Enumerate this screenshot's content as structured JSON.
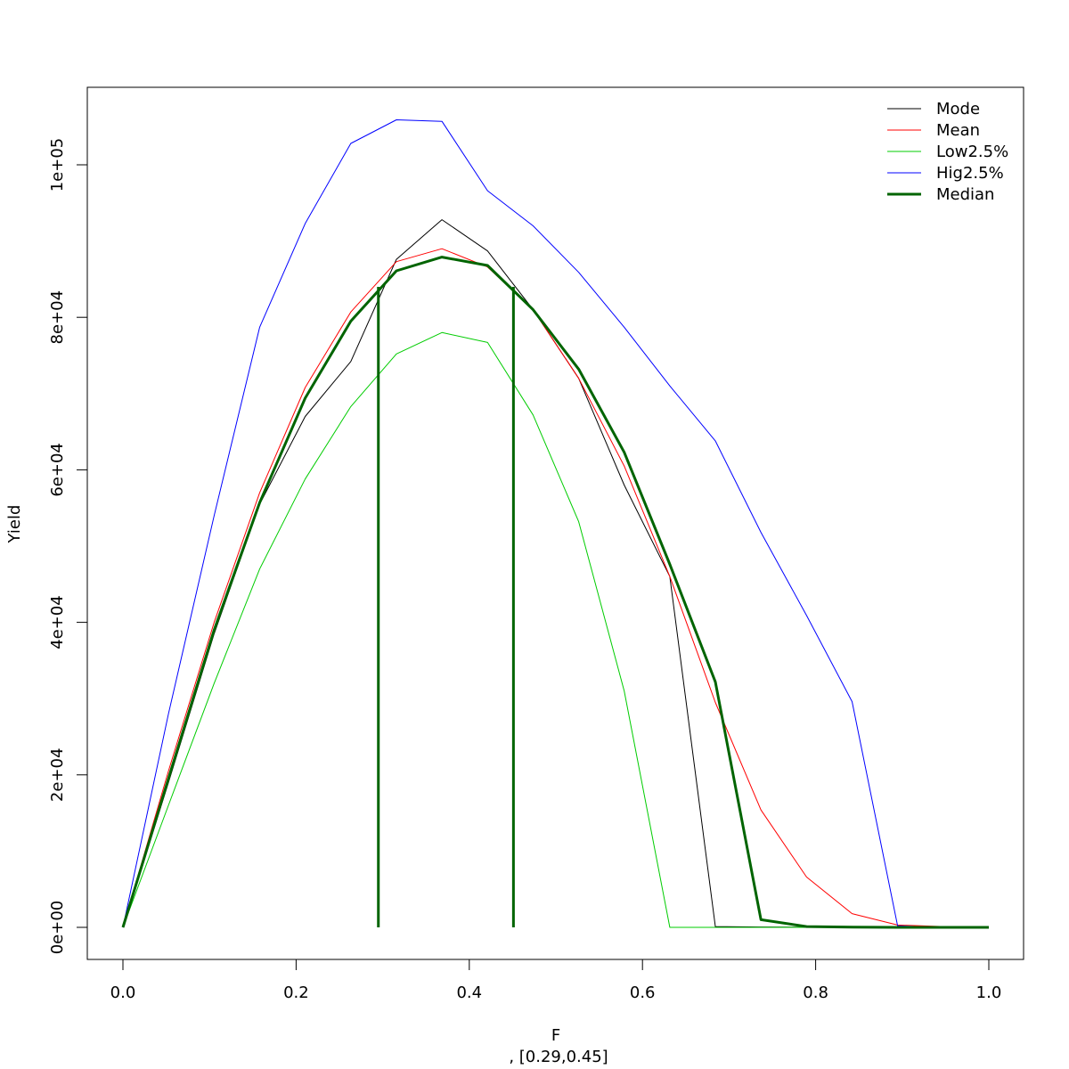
{
  "chart_data": {
    "type": "line",
    "xlabel": "F",
    "ylabel": "Yield",
    "subtitle": ", [0.29,0.45]",
    "xlim": [
      0,
      1
    ],
    "ylim": [
      0,
      105000
    ],
    "x_ticks": [
      0.0,
      0.2,
      0.4,
      0.6,
      0.8,
      1.0
    ],
    "x_tick_labels": [
      "0.0",
      "0.2",
      "0.4",
      "0.6",
      "0.8",
      "1.0"
    ],
    "y_ticks": [
      0,
      20000,
      40000,
      60000,
      80000,
      100000
    ],
    "y_tick_labels": [
      "0e+00",
      "2e+04",
      "4e+04",
      "6e+04",
      "8e+04",
      "1e+05"
    ],
    "grid": false,
    "legend_position": "top-right",
    "x": [
      0.0,
      0.0526,
      0.1053,
      0.1579,
      0.2105,
      0.2632,
      0.3158,
      0.3684,
      0.4211,
      0.4737,
      0.5263,
      0.5789,
      0.6316,
      0.6842,
      0.7368,
      0.7895,
      0.8421,
      0.8947,
      0.9474,
      1.0
    ],
    "series": [
      {
        "name": "Mode",
        "color": "#000000",
        "width": 1,
        "values": [
          0,
          19000,
          38500,
          55500,
          67000,
          74200,
          87600,
          92800,
          88700,
          81000,
          72000,
          58000,
          46000,
          100,
          50,
          20,
          10,
          0,
          0,
          0
        ]
      },
      {
        "name": "Mean",
        "color": "#ff0000",
        "width": 1,
        "values": [
          0,
          20500,
          40000,
          57000,
          70800,
          80700,
          87300,
          89000,
          86600,
          81000,
          72000,
          60500,
          46000,
          29500,
          15400,
          6600,
          1800,
          300,
          100,
          0
        ]
      },
      {
        "name": "Low2.5%",
        "color": "#00cc00",
        "width": 1,
        "values": [
          0,
          16000,
          32000,
          47000,
          58800,
          68300,
          75200,
          78000,
          76700,
          67200,
          53200,
          31000,
          0,
          0,
          0,
          0,
          0,
          0,
          0,
          0
        ]
      },
      {
        "name": "Hig2.5%",
        "color": "#0000ff",
        "width": 1,
        "values": [
          0,
          28000,
          54000,
          78700,
          92300,
          102800,
          105900,
          105700,
          96600,
          92000,
          85900,
          78700,
          71000,
          63800,
          51800,
          40900,
          29600,
          200,
          0,
          0
        ]
      },
      {
        "name": "Median",
        "color": "#006400",
        "width": 3,
        "values": [
          0,
          19500,
          39000,
          55700,
          69400,
          79500,
          86100,
          87900,
          86800,
          81000,
          73200,
          62300,
          47600,
          32200,
          1000,
          100,
          20,
          0,
          0,
          0
        ]
      }
    ],
    "vertical_lines": {
      "color": "#006400",
      "x": [
        0.295,
        0.451
      ],
      "y_top": 84000
    }
  }
}
